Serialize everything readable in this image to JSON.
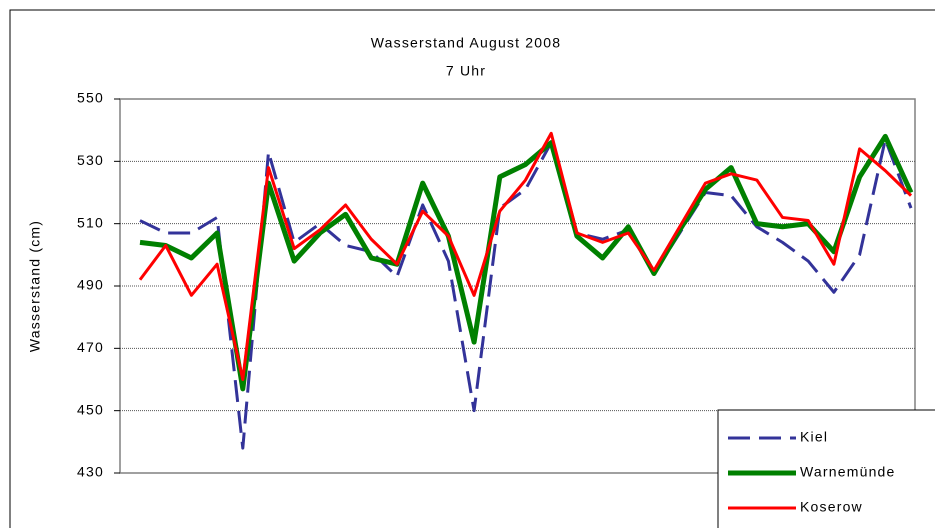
{
  "chart_data": {
    "type": "line",
    "title": "Wasserstand August 2008",
    "subtitle": "7 Uhr",
    "y_label": "Wasserstand (cm)",
    "categories": [
      null,
      null,
      null,
      null,
      null,
      null,
      null,
      null,
      null,
      null,
      null,
      null,
      null,
      null,
      null,
      null,
      null,
      null,
      null,
      null,
      null,
      null,
      null,
      null,
      null,
      null,
      null,
      null,
      null,
      null,
      null
    ],
    "series": [
      {
        "name": "Kiel",
        "color": "#333399",
        "dash": true,
        "values": [
          511,
          507,
          507,
          512,
          438,
          533,
          504,
          510,
          503,
          501,
          493,
          516,
          498,
          450,
          515,
          521,
          536,
          507,
          505,
          508,
          494,
          507,
          520,
          519,
          509,
          504,
          498,
          488,
          500,
          537,
          515
        ]
      },
      {
        "name": "Warnemünde",
        "color": "#008000",
        "dash": false,
        "values": [
          504,
          503,
          499,
          507,
          457,
          523,
          498,
          507,
          513,
          499,
          497,
          523,
          506,
          472,
          525,
          529,
          536,
          506,
          499,
          509,
          494,
          508,
          521,
          528,
          510,
          509,
          510,
          501,
          525,
          538,
          520
        ]
      },
      {
        "name": "Koserow",
        "color": "#ff0000",
        "dash": false,
        "values": [
          492,
          503,
          487,
          497,
          460,
          528,
          502,
          508,
          516,
          505,
          497,
          514,
          506,
          487,
          514,
          524,
          539,
          507,
          504,
          507,
          495,
          509,
          523,
          526,
          524,
          512,
          511,
          497,
          534,
          527,
          519
        ]
      }
    ],
    "ylim": [
      430,
      550
    ],
    "yticks": [
      430,
      450,
      470,
      490,
      510,
      530,
      550
    ],
    "grid": true,
    "legend": "lower right"
  }
}
